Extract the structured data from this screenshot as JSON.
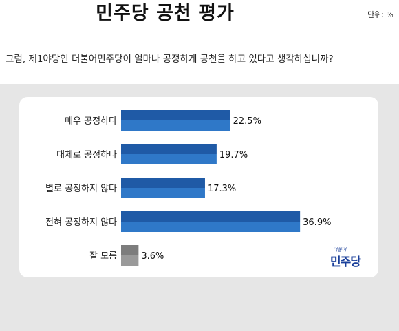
{
  "title": "민주당 공천 평가",
  "unit_label": "단위: %",
  "question": "그럼, 제1야당인 더불어민주당이 얼마나 공정하게 공천을 하고 있다고 생각하십니까?",
  "logo": {
    "small": "더불어",
    "main": "민주당"
  },
  "colors": {
    "bar_top": "#1f5aa6",
    "bar_bottom": "#2f78c8",
    "bar_gray_top": "#7d7d7d",
    "bar_gray_bottom": "#9a9a9a"
  },
  "chart_data": {
    "type": "bar",
    "orientation": "horizontal",
    "categories": [
      "매우 공정하다",
      "대체로 공정하다",
      "별로 공정하지 않다",
      "전혀 공정하지 않다",
      "잘 모름"
    ],
    "values": [
      22.5,
      19.7,
      17.3,
      36.9,
      3.6
    ],
    "value_labels": [
      "22.5%",
      "19.7%",
      "17.3%",
      "36.9%",
      "3.6%"
    ],
    "title": "민주당 공천 평가",
    "xlim": [
      0,
      40
    ],
    "grid": false,
    "legend": "none"
  }
}
